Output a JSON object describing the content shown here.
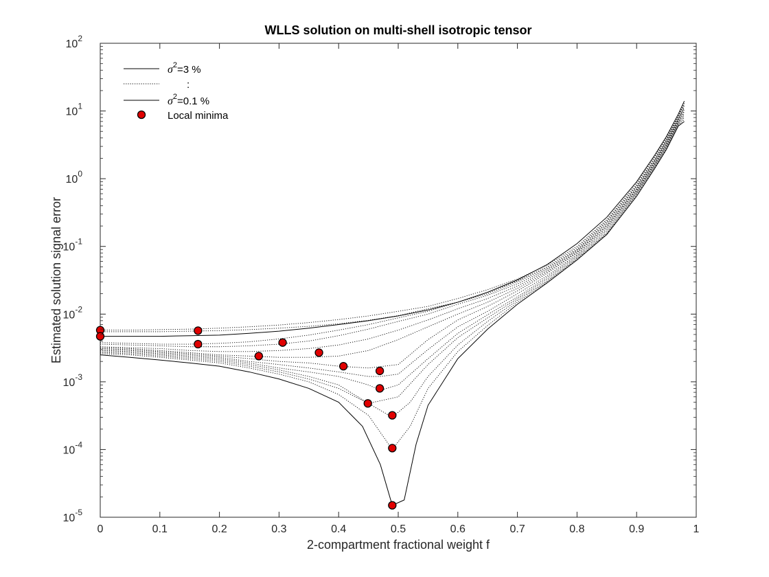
{
  "chart_data": {
    "type": "line",
    "title": "WLLS solution on multi-shell isotropic tensor",
    "xlabel": "2-compartment fractional weight f",
    "ylabel": "Estimated solution signal error",
    "xlim": [
      0,
      1
    ],
    "ylim": [
      1e-05,
      100
    ],
    "yscale": "log",
    "grid": false,
    "legend_position": "top-left",
    "x_ticks": [
      "0",
      "0.1",
      "0.2",
      "0.3",
      "0.4",
      "0.5",
      "0.6",
      "0.7",
      "0.8",
      "0.9",
      "1"
    ],
    "y_ticks": [
      {
        "base": "10",
        "exp": "-5",
        "value": 1e-05
      },
      {
        "base": "10",
        "exp": "-4",
        "value": 0.0001
      },
      {
        "base": "10",
        "exp": "-3",
        "value": 0.001
      },
      {
        "base": "10",
        "exp": "-2",
        "value": 0.01
      },
      {
        "base": "10",
        "exp": "-1",
        "value": 0.1
      },
      {
        "base": "10",
        "exp": "0",
        "value": 1
      },
      {
        "base": "10",
        "exp": "1",
        "value": 10
      },
      {
        "base": "10",
        "exp": "2",
        "value": 100
      }
    ],
    "legend": [
      {
        "style": "solid",
        "prefix": "σ",
        "sup": "2",
        "suffix": "=3 %"
      },
      {
        "style": "dotted",
        "prefix": "",
        "sup": "",
        "suffix": ":"
      },
      {
        "style": "solid",
        "prefix": "σ",
        "sup": "2",
        "suffix": "=0.1 %"
      },
      {
        "style": "marker",
        "prefix": "",
        "sup": "",
        "suffix": "Local minima"
      }
    ],
    "series": [
      {
        "style": "solid",
        "x": [
          0,
          0.05,
          0.1,
          0.15,
          0.2,
          0.25,
          0.3,
          0.35,
          0.4,
          0.45,
          0.5,
          0.55,
          0.6,
          0.65,
          0.7,
          0.75,
          0.8,
          0.85,
          0.9,
          0.93,
          0.95,
          0.97,
          0.98
        ],
        "y": [
          0.0047,
          0.0047,
          0.0047,
          0.0048,
          0.0049,
          0.0052,
          0.0056,
          0.0062,
          0.007,
          0.008,
          0.0094,
          0.0115,
          0.015,
          0.021,
          0.032,
          0.054,
          0.11,
          0.27,
          0.9,
          2.2,
          4.2,
          9.0,
          14.0
        ]
      },
      {
        "style": "dotted",
        "x": [
          0,
          0.05,
          0.1,
          0.15,
          0.2,
          0.25,
          0.3,
          0.35,
          0.4,
          0.45,
          0.5,
          0.55,
          0.6,
          0.65,
          0.7,
          0.75,
          0.8,
          0.85,
          0.9,
          0.93,
          0.95,
          0.97,
          0.98
        ],
        "y": [
          0.0058,
          0.0058,
          0.0059,
          0.006,
          0.0062,
          0.0065,
          0.0069,
          0.0075,
          0.0083,
          0.0094,
          0.011,
          0.013,
          0.017,
          0.023,
          0.033,
          0.053,
          0.1,
          0.25,
          0.85,
          2.1,
          4.0,
          8.5,
          13.0
        ]
      },
      {
        "style": "dotted",
        "x": [
          0,
          0.05,
          0.1,
          0.15,
          0.2,
          0.25,
          0.3,
          0.35,
          0.4,
          0.45,
          0.5,
          0.55,
          0.6,
          0.65,
          0.7,
          0.75,
          0.8,
          0.85,
          0.9,
          0.93,
          0.95,
          0.97,
          0.98
        ],
        "y": [
          0.0055,
          0.0055,
          0.0055,
          0.0056,
          0.0057,
          0.0059,
          0.0062,
          0.0066,
          0.0072,
          0.0081,
          0.0095,
          0.012,
          0.015,
          0.021,
          0.031,
          0.05,
          0.095,
          0.24,
          0.8,
          2.0,
          3.8,
          8.2,
          12.5
        ]
      },
      {
        "style": "dotted",
        "x": [
          0,
          0.05,
          0.1,
          0.15,
          0.2,
          0.25,
          0.3,
          0.35,
          0.4,
          0.45,
          0.5,
          0.55,
          0.6,
          0.65,
          0.7,
          0.75,
          0.8,
          0.85,
          0.9,
          0.93,
          0.95,
          0.97,
          0.98
        ],
        "y": [
          0.0038,
          0.0037,
          0.0036,
          0.0036,
          0.0037,
          0.0039,
          0.0043,
          0.0049,
          0.0058,
          0.007,
          0.0088,
          0.011,
          0.015,
          0.02,
          0.03,
          0.048,
          0.09,
          0.23,
          0.78,
          1.9,
          3.7,
          8.0,
          12.0
        ]
      },
      {
        "style": "dotted",
        "x": [
          0,
          0.05,
          0.1,
          0.15,
          0.2,
          0.25,
          0.3,
          0.35,
          0.4,
          0.45,
          0.5,
          0.55,
          0.6,
          0.65,
          0.7,
          0.75,
          0.8,
          0.85,
          0.9,
          0.93,
          0.95,
          0.97,
          0.98
        ],
        "y": [
          0.0036,
          0.0035,
          0.0034,
          0.0033,
          0.0033,
          0.0034,
          0.0036,
          0.004,
          0.0048,
          0.006,
          0.0078,
          0.01,
          0.014,
          0.019,
          0.028,
          0.046,
          0.088,
          0.22,
          0.75,
          1.85,
          3.6,
          7.8,
          11.5
        ]
      },
      {
        "style": "dotted",
        "x": [
          0,
          0.05,
          0.1,
          0.15,
          0.2,
          0.25,
          0.3,
          0.35,
          0.4,
          0.45,
          0.5,
          0.55,
          0.6,
          0.65,
          0.7,
          0.75,
          0.8,
          0.85,
          0.9,
          0.93,
          0.95,
          0.97,
          0.98
        ],
        "y": [
          0.0033,
          0.0032,
          0.0031,
          0.0029,
          0.0028,
          0.0028,
          0.0029,
          0.0031,
          0.0035,
          0.0043,
          0.0058,
          0.0082,
          0.012,
          0.017,
          0.026,
          0.044,
          0.085,
          0.21,
          0.72,
          1.8,
          3.5,
          7.6,
          11.0
        ]
      },
      {
        "style": "dotted",
        "x": [
          0,
          0.05,
          0.1,
          0.15,
          0.2,
          0.25,
          0.3,
          0.35,
          0.4,
          0.45,
          0.5,
          0.55,
          0.6,
          0.65,
          0.7,
          0.75,
          0.8,
          0.85,
          0.9,
          0.93,
          0.95,
          0.97,
          0.98
        ],
        "y": [
          0.0032,
          0.0031,
          0.0029,
          0.0027,
          0.0025,
          0.0024,
          0.0023,
          0.0023,
          0.0024,
          0.0029,
          0.0042,
          0.0065,
          0.01,
          0.015,
          0.024,
          0.042,
          0.082,
          0.2,
          0.7,
          1.75,
          3.4,
          7.4,
          10.5
        ]
      },
      {
        "style": "dotted",
        "x": [
          0,
          0.05,
          0.1,
          0.15,
          0.2,
          0.25,
          0.3,
          0.35,
          0.4,
          0.45,
          0.5,
          0.55,
          0.6,
          0.65,
          0.7,
          0.75,
          0.8,
          0.85,
          0.9,
          0.93,
          0.95,
          0.97,
          0.98
        ],
        "y": [
          0.0031,
          0.003,
          0.0028,
          0.0026,
          0.0024,
          0.0022,
          0.002,
          0.0019,
          0.0017,
          0.0016,
          0.0018,
          0.0042,
          0.0082,
          0.013,
          0.022,
          0.04,
          0.08,
          0.2,
          0.68,
          1.7,
          3.3,
          7.2,
          10.0
        ]
      },
      {
        "style": "dotted",
        "x": [
          0,
          0.05,
          0.1,
          0.15,
          0.2,
          0.25,
          0.3,
          0.35,
          0.4,
          0.45,
          0.47,
          0.5,
          0.55,
          0.6,
          0.65,
          0.7,
          0.75,
          0.8,
          0.85,
          0.9,
          0.93,
          0.95,
          0.97,
          0.98
        ],
        "y": [
          0.003,
          0.0029,
          0.0027,
          0.0025,
          0.0023,
          0.002,
          0.0018,
          0.0016,
          0.0014,
          0.0012,
          0.0012,
          0.0013,
          0.003,
          0.0065,
          0.011,
          0.02,
          0.037,
          0.076,
          0.19,
          0.66,
          1.65,
          3.2,
          7.0,
          9.5
        ]
      },
      {
        "style": "dotted",
        "x": [
          0,
          0.05,
          0.1,
          0.15,
          0.2,
          0.25,
          0.3,
          0.35,
          0.4,
          0.45,
          0.47,
          0.5,
          0.55,
          0.6,
          0.65,
          0.7,
          0.75,
          0.8,
          0.85,
          0.9,
          0.93,
          0.95,
          0.97,
          0.98
        ],
        "y": [
          0.0029,
          0.0028,
          0.0026,
          0.0024,
          0.0022,
          0.0019,
          0.0016,
          0.0014,
          0.0012,
          0.0009,
          0.00075,
          0.0009,
          0.0022,
          0.0052,
          0.0098,
          0.018,
          0.035,
          0.073,
          0.18,
          0.64,
          1.6,
          3.1,
          6.8,
          9.0
        ]
      },
      {
        "style": "dotted",
        "x": [
          0,
          0.05,
          0.1,
          0.15,
          0.2,
          0.25,
          0.3,
          0.35,
          0.4,
          0.45,
          0.5,
          0.55,
          0.6,
          0.65,
          0.7,
          0.75,
          0.8,
          0.85,
          0.9,
          0.93,
          0.95,
          0.97,
          0.98
        ],
        "y": [
          0.0028,
          0.0027,
          0.0025,
          0.0023,
          0.0021,
          0.0018,
          0.0015,
          0.0012,
          0.0009,
          0.00048,
          0.0006,
          0.0018,
          0.0045,
          0.0088,
          0.017,
          0.033,
          0.07,
          0.17,
          0.62,
          1.55,
          3.0,
          6.6,
          8.5
        ]
      },
      {
        "style": "dotted",
        "x": [
          0,
          0.05,
          0.1,
          0.15,
          0.2,
          0.25,
          0.3,
          0.35,
          0.4,
          0.45,
          0.49,
          0.52,
          0.55,
          0.6,
          0.65,
          0.7,
          0.75,
          0.8,
          0.85,
          0.9,
          0.93,
          0.95,
          0.97,
          0.98
        ],
        "y": [
          0.0027,
          0.0026,
          0.0024,
          0.0022,
          0.002,
          0.0017,
          0.0014,
          0.0011,
          0.0008,
          0.00048,
          0.0003,
          0.0005,
          0.0012,
          0.0035,
          0.0078,
          0.016,
          0.031,
          0.067,
          0.16,
          0.6,
          1.5,
          2.9,
          6.4,
          8.0
        ]
      },
      {
        "style": "dotted",
        "x": [
          0,
          0.05,
          0.1,
          0.15,
          0.2,
          0.25,
          0.3,
          0.35,
          0.4,
          0.45,
          0.49,
          0.52,
          0.55,
          0.6,
          0.65,
          0.7,
          0.75,
          0.8,
          0.85,
          0.9,
          0.93,
          0.95,
          0.97,
          0.98
        ],
        "y": [
          0.0026,
          0.0025,
          0.0023,
          0.0021,
          0.0019,
          0.0016,
          0.0013,
          0.001,
          0.00065,
          0.00032,
          0.0001,
          0.00022,
          0.0008,
          0.0028,
          0.0068,
          0.015,
          0.03,
          0.065,
          0.155,
          0.58,
          1.45,
          2.8,
          6.2,
          7.5
        ]
      },
      {
        "style": "solid",
        "x": [
          0,
          0.05,
          0.1,
          0.15,
          0.2,
          0.25,
          0.3,
          0.35,
          0.4,
          0.44,
          0.47,
          0.49,
          0.51,
          0.53,
          0.55,
          0.6,
          0.65,
          0.7,
          0.75,
          0.8,
          0.85,
          0.9,
          0.93,
          0.95,
          0.97,
          0.98
        ],
        "y": [
          0.0025,
          0.0023,
          0.0021,
          0.0019,
          0.0017,
          0.0014,
          0.0011,
          0.0008,
          0.0005,
          0.00022,
          6e-05,
          1.5e-05,
          1.8e-05,
          0.00012,
          0.00045,
          0.0022,
          0.006,
          0.014,
          0.029,
          0.063,
          0.15,
          0.55,
          1.4,
          2.7,
          6.0,
          7.0
        ]
      }
    ],
    "local_minima": [
      {
        "x": 0.0,
        "y": 0.0058
      },
      {
        "x": 0.0,
        "y": 0.0047
      },
      {
        "x": 0.164,
        "y": 0.0057
      },
      {
        "x": 0.164,
        "y": 0.0036
      },
      {
        "x": 0.266,
        "y": 0.0024
      },
      {
        "x": 0.306,
        "y": 0.0038
      },
      {
        "x": 0.367,
        "y": 0.0027
      },
      {
        "x": 0.408,
        "y": 0.0017
      },
      {
        "x": 0.469,
        "y": 0.00145
      },
      {
        "x": 0.469,
        "y": 0.0008
      },
      {
        "x": 0.449,
        "y": 0.00048
      },
      {
        "x": 0.49,
        "y": 0.00032
      },
      {
        "x": 0.49,
        "y": 0.000105
      },
      {
        "x": 0.49,
        "y": 1.5e-05
      }
    ],
    "colors": {
      "line": "#000000",
      "marker_fill": "#e00000",
      "marker_edge": "#000000",
      "axis": "#262626"
    }
  }
}
